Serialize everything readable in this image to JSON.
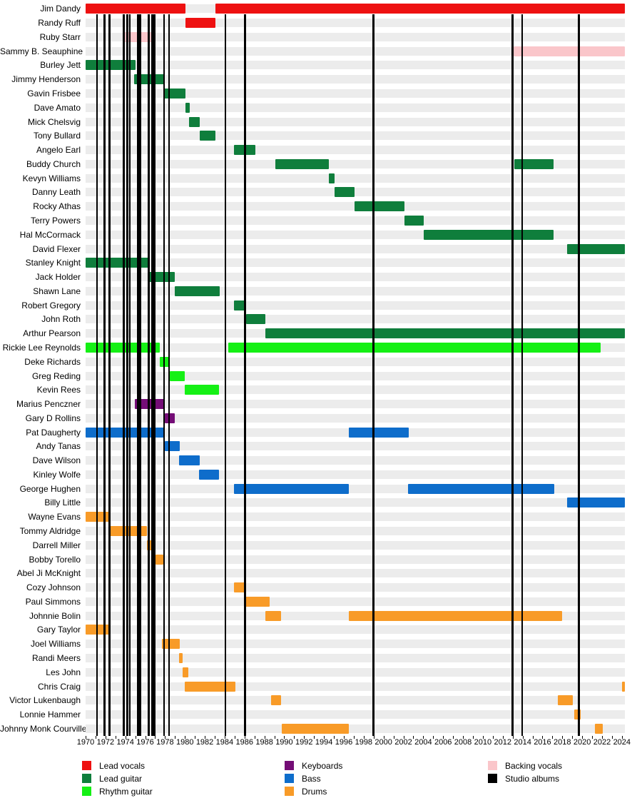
{
  "chart_data": {
    "type": "timeline",
    "x_axis": {
      "min": 1970,
      "max": 2024.3,
      "year_tick_interval": 1,
      "label_interval": 2,
      "labels": [
        "1970",
        "1972",
        "1974",
        "1976",
        "1978",
        "1980",
        "1982",
        "1984",
        "1986",
        "1988",
        "1990",
        "1992",
        "1994",
        "1996",
        "1998",
        "2000",
        "2002",
        "2004",
        "2006",
        "2008",
        "2010",
        "2012",
        "2014",
        "2016",
        "2018",
        "2020",
        "2022",
        "2024"
      ]
    },
    "roles": {
      "lead_vocals": {
        "label": "Lead vocals",
        "color": "#ee1111"
      },
      "lead_guitar": {
        "label": "Lead guitar",
        "color": "#0f7e3c"
      },
      "rhythm_guitar": {
        "label": "Rhythm guitar",
        "color": "#15f015"
      },
      "keyboards": {
        "label": "Keyboards",
        "color": "#740d76"
      },
      "bass": {
        "label": "Bass",
        "color": "#0e6dcb"
      },
      "drums": {
        "label": "Drums",
        "color": "#f89b28"
      },
      "backing_vocals": {
        "label": "Backing vocals",
        "color": "#fac6ca"
      },
      "studio_albums": {
        "label": "Studio albums",
        "color": "#000000"
      }
    },
    "legend": {
      "columns": [
        [
          "lead_vocals",
          "lead_guitar",
          "rhythm_guitar"
        ],
        [
          "keyboards",
          "bass",
          "drums"
        ],
        [
          "backing_vocals",
          "studio_albums"
        ]
      ]
    },
    "album_lines": [
      1971.15,
      1971.9,
      1972.4,
      1973.85,
      1974.2,
      1974.45,
      1975.27,
      1975.5,
      1976.35,
      1976.7,
      1976.95,
      1977.9,
      1978.4,
      1984.07,
      1986.05,
      1999.0,
      2012.97,
      2013.97,
      2019.65
    ],
    "members": [
      {
        "name": "Jim Dandy",
        "role": "lead_vocals",
        "segments": [
          [
            1970,
            1980.05
          ],
          [
            1983.05,
            2024.3
          ]
        ]
      },
      {
        "name": "Randy Ruff",
        "role": "lead_vocals",
        "segments": [
          [
            1980.05,
            1983.05
          ]
        ]
      },
      {
        "name": "Ruby Starr",
        "role": "backing_vocals",
        "segments": [
          [
            1973.85,
            1976.95
          ]
        ]
      },
      {
        "name": "Sammy B. Seauphine",
        "role": "backing_vocals",
        "segments": [
          [
            2013.1,
            2024.3
          ]
        ]
      },
      {
        "name": "Burley Jett",
        "role": "lead_guitar",
        "segments": [
          [
            1970,
            1975.0
          ]
        ]
      },
      {
        "name": "Jimmy Henderson",
        "role": "lead_guitar",
        "segments": [
          [
            1974.9,
            1978.0
          ]
        ]
      },
      {
        "name": "Gavin Frisbee",
        "role": "lead_guitar",
        "segments": [
          [
            1977.9,
            1980.05
          ]
        ]
      },
      {
        "name": "Dave Amato",
        "role": "lead_guitar",
        "segments": [
          [
            1980.05,
            1980.5
          ]
        ]
      },
      {
        "name": "Mick Chelsvig",
        "role": "lead_guitar",
        "segments": [
          [
            1980.45,
            1981.5
          ]
        ]
      },
      {
        "name": "Tony Bullard",
        "role": "lead_guitar",
        "segments": [
          [
            1981.5,
            1983.05
          ]
        ]
      },
      {
        "name": "Angelo Earl",
        "role": "lead_guitar",
        "segments": [
          [
            1984.95,
            1987.1
          ]
        ]
      },
      {
        "name": "Buddy Church",
        "role": "lead_guitar",
        "segments": [
          [
            1989.1,
            1994.5
          ],
          [
            2013.2,
            2017.1
          ]
        ]
      },
      {
        "name": "Kevyn Williams",
        "role": "lead_guitar",
        "segments": [
          [
            1994.5,
            1995.1
          ]
        ]
      },
      {
        "name": "Danny Leath",
        "role": "lead_guitar",
        "segments": [
          [
            1995.05,
            1997.05
          ]
        ]
      },
      {
        "name": "Rocky Athas",
        "role": "lead_guitar",
        "segments": [
          [
            1997.05,
            2002.1
          ]
        ]
      },
      {
        "name": "Terry Powers",
        "role": "lead_guitar",
        "segments": [
          [
            2002.1,
            2004.05
          ]
        ]
      },
      {
        "name": "Hal McCormack",
        "role": "lead_guitar",
        "segments": [
          [
            2004.05,
            2017.1
          ]
        ]
      },
      {
        "name": "David Flexer",
        "role": "lead_guitar",
        "segments": [
          [
            2018.45,
            2024.3
          ]
        ]
      },
      {
        "name": "Stanley Knight",
        "role": "lead_guitar",
        "segments": [
          [
            1970,
            1976.4
          ]
        ]
      },
      {
        "name": "Jack Holder",
        "role": "lead_guitar",
        "segments": [
          [
            1976.4,
            1979.0
          ]
        ]
      },
      {
        "name": "Shawn Lane",
        "role": "lead_guitar",
        "segments": [
          [
            1978.95,
            1983.5
          ]
        ]
      },
      {
        "name": "Robert Gregory",
        "role": "lead_guitar",
        "segments": [
          [
            1984.95,
            1986.05
          ]
        ]
      },
      {
        "name": "John Roth",
        "role": "lead_guitar",
        "segments": [
          [
            1986.15,
            1988.1
          ]
        ]
      },
      {
        "name": "Arthur Pearson",
        "role": "lead_guitar",
        "segments": [
          [
            1988.1,
            2024.3
          ]
        ]
      },
      {
        "name": "Rickie Lee Reynolds",
        "role": "rhythm_guitar",
        "segments": [
          [
            1970,
            1977.45
          ],
          [
            1984.4,
            2021.85
          ]
        ]
      },
      {
        "name": "Deke Richards",
        "role": "rhythm_guitar",
        "segments": [
          [
            1977.45,
            1978.45
          ]
        ]
      },
      {
        "name": "Greg Reding",
        "role": "rhythm_guitar",
        "segments": [
          [
            1978.5,
            1980.0
          ]
        ]
      },
      {
        "name": "Kevin Rees",
        "role": "rhythm_guitar",
        "segments": [
          [
            1980.0,
            1983.45
          ]
        ]
      },
      {
        "name": "Marius Penczner",
        "role": "keyboards",
        "segments": [
          [
            1974.95,
            1978.0
          ]
        ]
      },
      {
        "name": "Gary D Rollins",
        "role": "keyboards",
        "segments": [
          [
            1978.0,
            1979.0
          ]
        ]
      },
      {
        "name": "Pat Daugherty",
        "role": "bass",
        "segments": [
          [
            1970,
            1978.0
          ],
          [
            1996.5,
            2002.55
          ]
        ]
      },
      {
        "name": "Andy Tanas",
        "role": "bass",
        "segments": [
          [
            1978.0,
            1979.45
          ]
        ]
      },
      {
        "name": "Dave Wilson",
        "role": "bass",
        "segments": [
          [
            1979.4,
            1981.5
          ]
        ]
      },
      {
        "name": "Kinley Wolfe",
        "role": "bass",
        "segments": [
          [
            1981.45,
            1983.45
          ]
        ]
      },
      {
        "name": "George Hughen",
        "role": "bass",
        "segments": [
          [
            1984.95,
            1996.5
          ],
          [
            2002.5,
            2017.2
          ]
        ]
      },
      {
        "name": "Billy Little",
        "role": "bass",
        "segments": [
          [
            2018.45,
            2024.3
          ]
        ]
      },
      {
        "name": "Wayne Evans",
        "role": "drums",
        "segments": [
          [
            1970,
            1972.4
          ]
        ]
      },
      {
        "name": "Tommy Aldridge",
        "role": "drums",
        "segments": [
          [
            1972.4,
            1976.15
          ]
        ]
      },
      {
        "name": "Darrell Miller",
        "role": "drums",
        "segments": [
          [
            1976.15,
            1976.9
          ]
        ]
      },
      {
        "name": "Bobby Torello",
        "role": "drums",
        "segments": [
          [
            1977.05,
            1977.8
          ]
        ]
      },
      {
        "name": "Abel Ji McKnight",
        "role": "drums",
        "segments": []
      },
      {
        "name": "Cozy Johnson",
        "role": "drums",
        "segments": [
          [
            1984.95,
            1986.1
          ]
        ]
      },
      {
        "name": "Paul Simmons",
        "role": "drums",
        "segments": [
          [
            1986.05,
            1988.5
          ]
        ]
      },
      {
        "name": "Johnnie Bolin",
        "role": "drums",
        "segments": [
          [
            1988.1,
            1989.7
          ],
          [
            1996.5,
            2018.0
          ]
        ]
      },
      {
        "name": "Gary Taylor",
        "role": "drums",
        "segments": [
          [
            1970,
            1972.4
          ]
        ]
      },
      {
        "name": "Joel Williams",
        "role": "drums",
        "segments": [
          [
            1977.7,
            1979.45
          ]
        ]
      },
      {
        "name": "Randi Meers",
        "role": "drums",
        "segments": [
          [
            1979.4,
            1979.75
          ]
        ]
      },
      {
        "name": "Les John",
        "role": "drums",
        "segments": [
          [
            1979.75,
            1980.35
          ]
        ]
      },
      {
        "name": "Chris Craig",
        "role": "drums",
        "segments": [
          [
            1980.0,
            1985.1
          ],
          [
            2024.0,
            2024.3
          ]
        ]
      },
      {
        "name": "Victor Lukenbaugh",
        "role": "drums",
        "segments": [
          [
            1988.65,
            1989.65
          ],
          [
            2017.55,
            2019.05
          ]
        ]
      },
      {
        "name": "Lonnie Hammer",
        "role": "drums",
        "segments": [
          [
            2019.2,
            2019.85
          ]
        ]
      },
      {
        "name": "Johnny Monk Courville",
        "role": "drums",
        "segments": [
          [
            1989.75,
            1996.5
          ],
          [
            2021.3,
            2022.1
          ]
        ]
      }
    ]
  }
}
